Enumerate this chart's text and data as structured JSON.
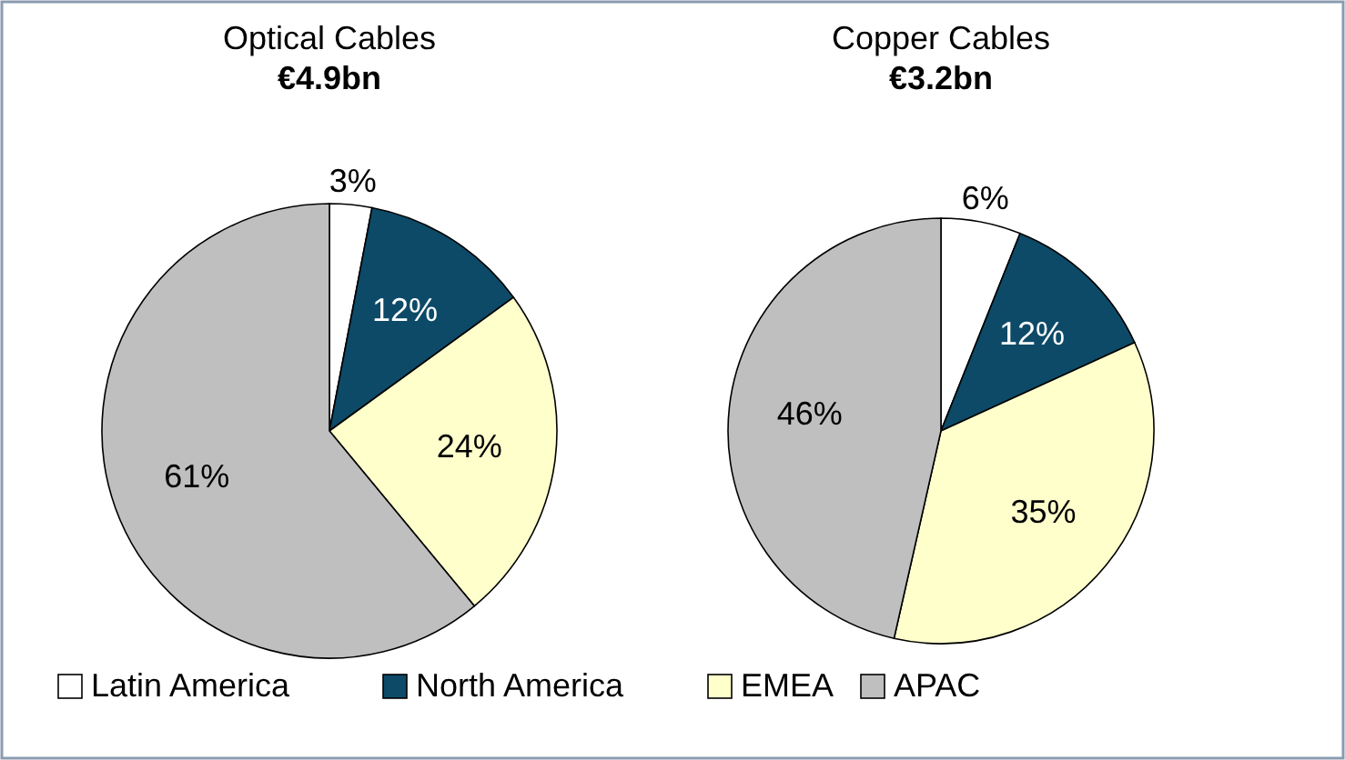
{
  "chart_data": [
    {
      "type": "pie",
      "title": "Optical Cables",
      "subtitle": "€4.9bn",
      "categories": [
        "Latin America",
        "North America",
        "EMEA",
        "APAC"
      ],
      "values": [
        3,
        12,
        24,
        61
      ],
      "value_labels": [
        "3%",
        "12%",
        "24%",
        "61%"
      ],
      "colors": [
        "#ffffff",
        "#0d4a68",
        "#ffffcc",
        "#bfbfbf"
      ],
      "legend": "bottom"
    },
    {
      "type": "pie",
      "title": "Copper Cables",
      "subtitle": "€3.2bn",
      "categories": [
        null,
        null,
        null,
        null
      ],
      "values": [
        6,
        12,
        35,
        46
      ],
      "value_labels": [
        "6%",
        "12%",
        "35%",
        "46%"
      ],
      "colors": [
        "#ffffff",
        "#0d4a68",
        "#ffffcc",
        "#bfbfbf"
      ]
    }
  ]
}
